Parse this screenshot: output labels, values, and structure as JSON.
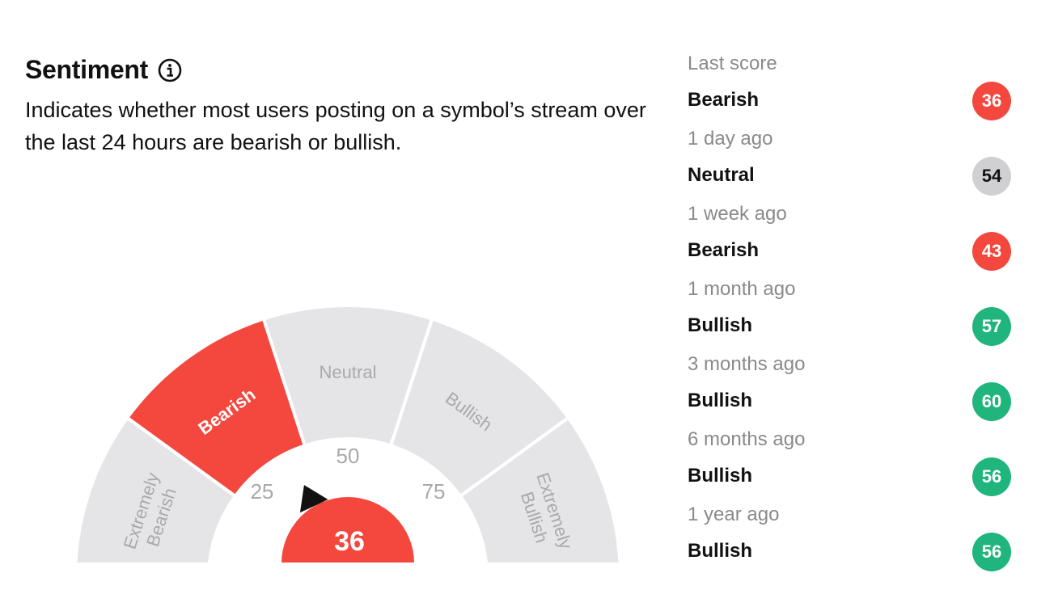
{
  "header": {
    "title": "Sentiment",
    "info_icon": "info-icon",
    "description": "Indicates whether most users posting on a symbol’s stream over the last 24 hours are bearish or bullish."
  },
  "gauge": {
    "score": "36",
    "score_value": 36,
    "active_segment": "Bearish",
    "segments": [
      {
        "label": "Extremely Bearish",
        "active": false
      },
      {
        "label": "Bearish",
        "active": true
      },
      {
        "label": "Neutral",
        "active": false
      },
      {
        "label": "Bullish",
        "active": false
      },
      {
        "label": "Extremely Bullish",
        "active": false
      }
    ],
    "ticks": [
      "0",
      "25",
      "50",
      "75",
      "100"
    ],
    "colors": {
      "active": "#f4473e",
      "inactive": "#e5e5e8",
      "inactive_text": "#a9a9ad",
      "active_text": "#ffffff"
    }
  },
  "history": {
    "items": [
      {
        "when": "Last score",
        "label": "Bearish",
        "score": "36",
        "color": "#f4473e"
      },
      {
        "when": "1 day ago",
        "label": "Neutral",
        "score": "54",
        "color": "#d0d0d3"
      },
      {
        "when": "1 week ago",
        "label": "Bearish",
        "score": "43",
        "color": "#f4473e"
      },
      {
        "when": "1 month ago",
        "label": "Bullish",
        "score": "57",
        "color": "#1fb57c"
      },
      {
        "when": "3 months ago",
        "label": "Bullish",
        "score": "60",
        "color": "#1fb57c"
      },
      {
        "when": "6 months ago",
        "label": "Bullish",
        "score": "56",
        "color": "#1fb57c"
      },
      {
        "when": "1 year ago",
        "label": "Bullish",
        "score": "56",
        "color": "#1fb57c"
      }
    ]
  }
}
